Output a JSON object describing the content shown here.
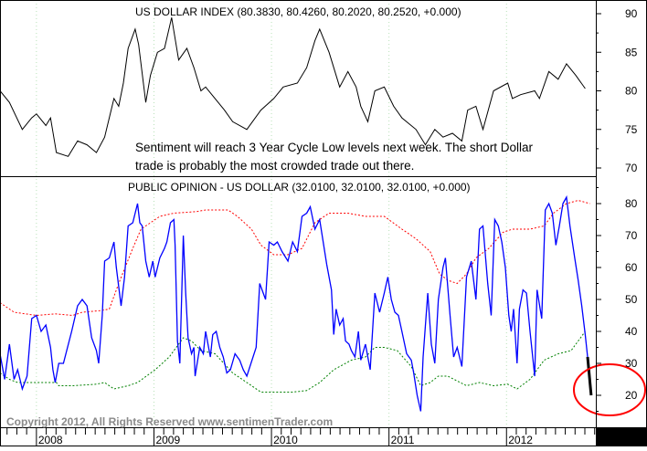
{
  "chart_data": [
    {
      "type": "line",
      "title": "US DOLLAR INDEX (80.3830, 80.4260, 80.2020, 80.2520, +0.000)",
      "xlim": [
        2007.69,
        2012.76
      ],
      "ylim": [
        69,
        91.5
      ],
      "yticks": [
        70,
        75,
        80,
        85,
        90
      ],
      "grid": "vertical dotted at years",
      "annotation": [
        "Sentiment will reach 3 Year Cycle Low levels next week.  The short Dollar",
        "trade is probably the most crowded trade out there."
      ],
      "colors": {
        "line": "#000000"
      },
      "series": [
        {
          "x": [
            2007.69,
            2007.77,
            2007.88,
            2007.96,
            2008.0,
            2008.08,
            2008.12,
            2008.17,
            2008.27,
            2008.35,
            2008.43,
            2008.51,
            2008.58,
            2008.66,
            2008.7,
            2008.74,
            2008.78,
            2008.84,
            2008.87,
            2008.93,
            2008.97,
            2009.03,
            2009.09,
            2009.15,
            2009.21,
            2009.28,
            2009.34,
            2009.4,
            2009.44,
            2009.52,
            2009.6,
            2009.67,
            2009.79,
            2009.91,
            2010.02,
            2010.1,
            2010.22,
            2010.3,
            2010.37,
            2010.41,
            2010.49,
            2010.58,
            2010.65,
            2010.72,
            2010.76,
            2010.82,
            2010.88,
            2010.96,
            2011.04,
            2011.11,
            2011.23,
            2011.31,
            2011.39,
            2011.46,
            2011.54,
            2011.62,
            2011.67,
            2011.74,
            2011.8,
            2011.89,
            2012.01,
            2012.05,
            2012.12,
            2012.24,
            2012.28,
            2012.36,
            2012.44,
            2012.51,
            2012.59,
            2012.67
          ],
          "values": [
            80,
            78.5,
            75,
            76.5,
            77,
            75.5,
            76.5,
            72,
            71.5,
            73.5,
            73,
            72,
            74,
            79,
            78,
            81,
            85.5,
            88,
            86,
            78.5,
            82,
            85,
            85.5,
            89.5,
            84,
            85.5,
            83,
            80,
            80.5,
            79,
            77.5,
            76,
            75,
            77.5,
            79,
            80.5,
            81,
            83,
            86.5,
            88,
            85,
            80.5,
            82.5,
            80.5,
            78,
            76,
            80,
            80.5,
            78,
            76.5,
            75,
            73,
            75,
            74,
            74.5,
            73.5,
            77.5,
            78,
            75,
            80,
            81,
            79,
            79.5,
            80,
            79,
            82.5,
            81.5,
            83.5,
            82,
            80.3
          ]
        }
      ]
    },
    {
      "type": "line",
      "title": "PUBLIC OPINION - US DOLLAR (32.0100, 32.0100, 32.0100, +0.000)",
      "xlim": [
        2007.69,
        2012.76
      ],
      "ylim": [
        13.5,
        88
      ],
      "yticks": [
        20,
        30,
        40,
        50,
        60,
        70,
        80
      ],
      "xticks": [
        "2008",
        "2009",
        "2010",
        "2011",
        "2012"
      ],
      "xtick_values": [
        2008,
        2009,
        2010,
        2011,
        2012
      ],
      "grid": "vertical dotted at years",
      "footer": "Copyright 2012, All Rights Reserved  www.sentimenTrader.com",
      "colors": {
        "sentiment": "#0000ff",
        "upper_band": "#ff0000",
        "lower_band": "#008000",
        "latest": "#000000",
        "circle": "#ff0000"
      },
      "series": [
        {
          "x": [
            2007.69,
            2007.73,
            2007.77,
            2007.81,
            2007.84,
            2007.88,
            2007.92,
            2007.96,
            2008.0,
            2008.04,
            2008.08,
            2008.12,
            2008.14,
            2008.16,
            2008.19,
            2008.23,
            2008.3,
            2008.35,
            2008.39,
            2008.43,
            2008.47,
            2008.51,
            2008.53,
            2008.56,
            2008.58,
            2008.62,
            2008.66,
            2008.68,
            2008.72,
            2008.75,
            2008.78,
            2008.82,
            2008.86,
            2008.88,
            2008.9,
            2008.93,
            2008.96,
            2008.99,
            2009.01,
            2009.05,
            2009.09,
            2009.11,
            2009.14,
            2009.17,
            2009.18,
            2009.2,
            2009.22,
            2009.25,
            2009.27,
            2009.29,
            2009.32,
            2009.34,
            2009.35,
            2009.39,
            2009.42,
            2009.44,
            2009.48,
            2009.5,
            2009.53,
            2009.56,
            2009.59,
            2009.62,
            2009.65,
            2009.69,
            2009.73,
            2009.76,
            2009.79,
            2009.87,
            2009.9,
            2009.95,
            2009.98,
            2010.02,
            2010.05,
            2010.09,
            2010.14,
            2010.18,
            2010.22,
            2010.26,
            2010.3,
            2010.33,
            2010.37,
            2010.41,
            2010.47,
            2010.51,
            2010.53,
            2010.55,
            2010.58,
            2010.61,
            2010.63,
            2010.66,
            2010.68,
            2010.71,
            2010.74,
            2010.76,
            2010.8,
            2010.84,
            2010.88,
            2010.92,
            2010.96,
            2010.99,
            2011.02,
            2011.05,
            2011.08,
            2011.11,
            2011.15,
            2011.19,
            2011.21,
            2011.24,
            2011.27,
            2011.29,
            2011.33,
            2011.36,
            2011.39,
            2011.42,
            2011.46,
            2011.48,
            2011.52,
            2011.55,
            2011.58,
            2011.62,
            2011.66,
            2011.7,
            2011.74,
            2011.77,
            2011.8,
            2011.84,
            2011.87,
            2011.9,
            2011.93,
            2011.96,
            2011.99,
            2012.02,
            2012.04,
            2012.06,
            2012.09,
            2012.11,
            2012.14,
            2012.17,
            2012.2,
            2012.24,
            2012.26,
            2012.3,
            2012.33,
            2012.36,
            2012.39,
            2012.42,
            2012.45,
            2012.48,
            2012.51,
            2012.54,
            2012.58,
            2012.61,
            2012.64,
            2012.67,
            2012.69
          ],
          "values": [
            33,
            25,
            36,
            25,
            28,
            22,
            26,
            44,
            45,
            40,
            42,
            35,
            28,
            24,
            30,
            30,
            40,
            48,
            50,
            48,
            38,
            34,
            30,
            45,
            62,
            63,
            68,
            60,
            48,
            57,
            73,
            74,
            80,
            74,
            73,
            62,
            57,
            62,
            57,
            63,
            66,
            68,
            74,
            75,
            67,
            37,
            30,
            70,
            52,
            38,
            33,
            35,
            26,
            35,
            33,
            40,
            32,
            39,
            40,
            35,
            32,
            27,
            28,
            33,
            31,
            28,
            26,
            35,
            55,
            50,
            68,
            67,
            68,
            65,
            62,
            68,
            65,
            76,
            77,
            79,
            72,
            75,
            61,
            53,
            39,
            47,
            42,
            44,
            37,
            36,
            34,
            32,
            40,
            31,
            36,
            28,
            52,
            46,
            52,
            57,
            50,
            46,
            45,
            40,
            33,
            31,
            27,
            20,
            15,
            32,
            52,
            36,
            30,
            50,
            60,
            63,
            45,
            32,
            35,
            29,
            57,
            62,
            50,
            72,
            73,
            55,
            45,
            75,
            73,
            68,
            60,
            45,
            40,
            47,
            30,
            47,
            53,
            52,
            40,
            26,
            53,
            44,
            78,
            80,
            77,
            67,
            73,
            80,
            82,
            73,
            63,
            56,
            48,
            39,
            32
          ]
        },
        {
          "x": [
            2012.69,
            2012.72
          ],
          "values": [
            32,
            20
          ]
        },
        {
          "x": [
            2007.69,
            2007.81,
            2008.0,
            2008.16,
            2008.31,
            2008.39,
            2008.54,
            2008.62,
            2008.7,
            2008.82,
            2008.89,
            2009.05,
            2009.17,
            2009.36,
            2009.44,
            2009.63,
            2009.71,
            2009.83,
            2009.91,
            2010.02,
            2010.14,
            2010.26,
            2010.37,
            2010.49,
            2010.65,
            2010.8,
            2010.96,
            2011.11,
            2011.23,
            2011.35,
            2011.43,
            2011.5,
            2011.58,
            2011.66,
            2011.74,
            2011.85,
            2011.97,
            2012.05,
            2012.2,
            2012.32,
            2012.4,
            2012.51,
            2012.61,
            2012.71
          ],
          "values": [
            49,
            46,
            45,
            45.5,
            45,
            46,
            46.5,
            47,
            55,
            66,
            72,
            76,
            77,
            77.5,
            78,
            78,
            76,
            72,
            67,
            64,
            64,
            66,
            74,
            77,
            77,
            76,
            76,
            72,
            69,
            65,
            58,
            56,
            55,
            58,
            63,
            66,
            71,
            72,
            72,
            73,
            77,
            80,
            81,
            80
          ]
        },
        {
          "x": [
            2007.69,
            2007.77,
            2007.84,
            2008.0,
            2008.17,
            2008.19,
            2008.31,
            2008.51,
            2008.58,
            2008.66,
            2008.78,
            2008.86,
            2009.01,
            2009.13,
            2009.25,
            2009.32,
            2009.4,
            2009.52,
            2009.67,
            2009.79,
            2009.91,
            2010.02,
            2010.18,
            2010.3,
            2010.41,
            2010.53,
            2010.68,
            2010.8,
            2010.88,
            2010.96,
            2011.07,
            2011.19,
            2011.27,
            2011.35,
            2011.42,
            2011.5,
            2011.66,
            2011.77,
            2011.89,
            2012.01,
            2012.09,
            2012.2,
            2012.32,
            2012.44,
            2012.55,
            2012.67
          ],
          "values": [
            27,
            25,
            24,
            24,
            24,
            23,
            23,
            23.5,
            24,
            22,
            23,
            24,
            28,
            32,
            38,
            37,
            34,
            33,
            27,
            24,
            21,
            21,
            21,
            21.5,
            24,
            28,
            31,
            32,
            35,
            35,
            34,
            29,
            23,
            24,
            26,
            26,
            23,
            24,
            23,
            23.5,
            22,
            25,
            31,
            33,
            34,
            40
          ]
        }
      ]
    }
  ]
}
